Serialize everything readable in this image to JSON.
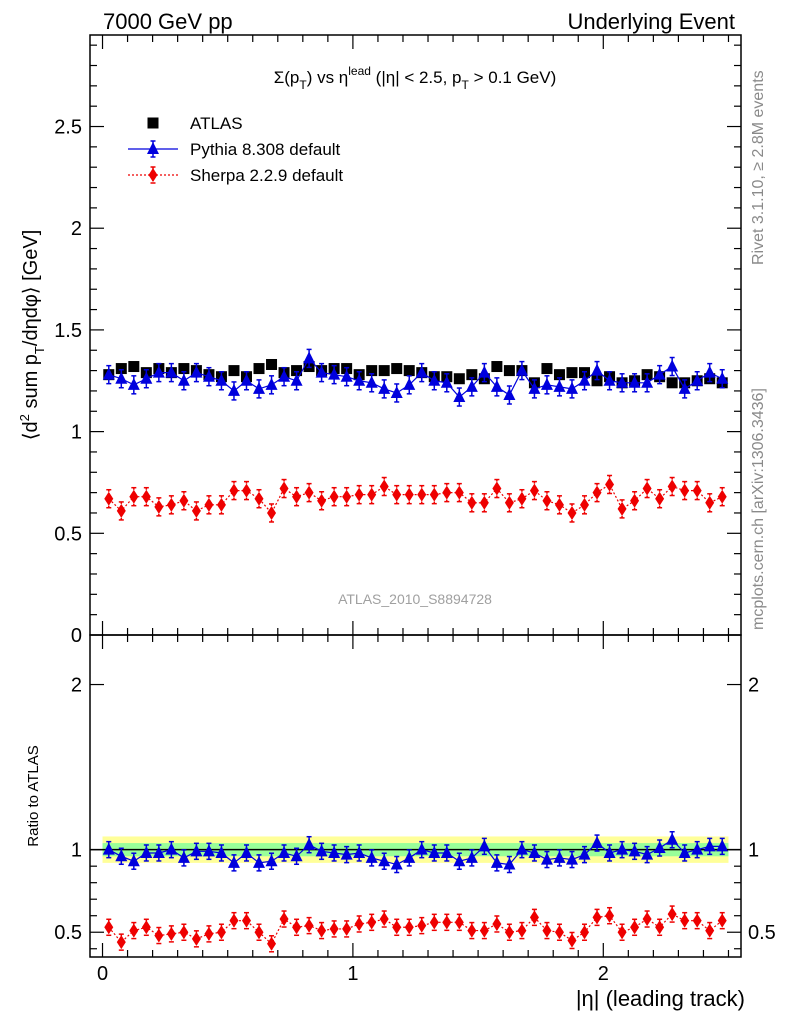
{
  "header": {
    "left": "7000 GeV pp",
    "right": "Underlying Event"
  },
  "side_labels": {
    "rivet": "Rivet 3.1.10, ≥ 2.8M events",
    "mcplots": "mcplots.cern.ch [arXiv:1306.3436]"
  },
  "watermark": "ATLAS_2010_S8894728",
  "chart_data": [
    {
      "type": "scatter",
      "title": "Σ(p_T) vs η^lead (|η| < 2.5, p_T > 0.1 GeV)",
      "xlabel": "",
      "ylabel": "⟨d² sum p_T/dηdφ⟩ [GeV]",
      "xlim": [
        -0.05,
        2.55
      ],
      "ylim": [
        0,
        2.95
      ],
      "yticks": [
        "0.5",
        "1",
        "1.5",
        "2",
        "2.5"
      ],
      "legend_placement": "top-left",
      "x": [
        0.025,
        0.075,
        0.125,
        0.175,
        0.225,
        0.275,
        0.325,
        0.375,
        0.425,
        0.475,
        0.525,
        0.575,
        0.625,
        0.675,
        0.725,
        0.775,
        0.825,
        0.875,
        0.925,
        0.975,
        1.025,
        1.075,
        1.125,
        1.175,
        1.225,
        1.275,
        1.325,
        1.375,
        1.425,
        1.475,
        1.525,
        1.575,
        1.625,
        1.675,
        1.725,
        1.775,
        1.825,
        1.875,
        1.925,
        1.975,
        2.025,
        2.075,
        2.125,
        2.175,
        2.225,
        2.275,
        2.325,
        2.375,
        2.425,
        2.475
      ],
      "series": [
        {
          "name": "ATLAS",
          "color": "#000000",
          "marker": "square",
          "values": [
            1.28,
            1.31,
            1.32,
            1.29,
            1.31,
            1.29,
            1.31,
            1.3,
            1.28,
            1.27,
            1.3,
            1.27,
            1.31,
            1.33,
            1.29,
            1.3,
            1.32,
            1.3,
            1.31,
            1.31,
            1.28,
            1.3,
            1.3,
            1.31,
            1.3,
            1.29,
            1.27,
            1.27,
            1.26,
            1.28,
            1.26,
            1.32,
            1.3,
            1.3,
            1.24,
            1.31,
            1.28,
            1.29,
            1.29,
            1.25,
            1.27,
            1.24,
            1.25,
            1.28,
            1.27,
            1.24,
            1.24,
            1.25,
            1.26,
            1.24
          ]
        },
        {
          "name": "Pythia 8.308 default",
          "color": "#0000dd",
          "marker": "triangle",
          "values": [
            1.28,
            1.26,
            1.23,
            1.26,
            1.29,
            1.29,
            1.25,
            1.29,
            1.27,
            1.25,
            1.2,
            1.25,
            1.21,
            1.23,
            1.27,
            1.25,
            1.36,
            1.29,
            1.28,
            1.27,
            1.25,
            1.24,
            1.21,
            1.19,
            1.23,
            1.29,
            1.25,
            1.24,
            1.17,
            1.22,
            1.29,
            1.22,
            1.18,
            1.3,
            1.21,
            1.23,
            1.22,
            1.21,
            1.25,
            1.3,
            1.25,
            1.24,
            1.24,
            1.24,
            1.28,
            1.32,
            1.21,
            1.25,
            1.29,
            1.26
          ]
        },
        {
          "name": "Sherpa 2.2.9 default",
          "color": "#ee0000",
          "marker": "diamond",
          "values": [
            0.67,
            0.61,
            0.68,
            0.68,
            0.63,
            0.64,
            0.66,
            0.61,
            0.64,
            0.64,
            0.71,
            0.71,
            0.67,
            0.6,
            0.72,
            0.68,
            0.7,
            0.66,
            0.68,
            0.68,
            0.69,
            0.69,
            0.73,
            0.69,
            0.69,
            0.69,
            0.69,
            0.7,
            0.7,
            0.65,
            0.65,
            0.72,
            0.65,
            0.67,
            0.71,
            0.66,
            0.64,
            0.6,
            0.64,
            0.7,
            0.74,
            0.62,
            0.66,
            0.72,
            0.67,
            0.73,
            0.71,
            0.71,
            0.65,
            0.68
          ]
        }
      ]
    },
    {
      "type": "scatter",
      "title": "",
      "xlabel": "|η| (leading track)",
      "ylabel": "Ratio to ATLAS",
      "xlim": [
        -0.05,
        2.55
      ],
      "ylim": [
        0.35,
        2.3
      ],
      "xticks": [
        "0",
        "1",
        "2"
      ],
      "yticks": [
        "0.5",
        "1",
        "2"
      ],
      "reference_line": 1,
      "uncertainty_bands": {
        "inner_color": "#99ff99",
        "outer_color": "#ffff99"
      },
      "series": [
        {
          "name": "Pythia 8.308 default",
          "color": "#0000dd",
          "marker": "triangle",
          "values": [
            1.0,
            0.96,
            0.93,
            0.98,
            0.98,
            1.0,
            0.95,
            0.99,
            0.99,
            0.98,
            0.92,
            0.98,
            0.92,
            0.93,
            0.98,
            0.96,
            1.03,
            0.99,
            0.98,
            0.97,
            0.98,
            0.95,
            0.93,
            0.91,
            0.95,
            1.0,
            0.98,
            0.98,
            0.93,
            0.95,
            1.02,
            0.92,
            0.91,
            1.0,
            0.98,
            0.94,
            0.95,
            0.94,
            0.97,
            1.04,
            0.98,
            1.0,
            0.99,
            0.97,
            1.01,
            1.06,
            0.98,
            1.0,
            1.02,
            1.02
          ]
        },
        {
          "name": "Sherpa 2.2.9 default",
          "color": "#ee0000",
          "marker": "diamond",
          "values": [
            0.53,
            0.44,
            0.51,
            0.53,
            0.48,
            0.49,
            0.5,
            0.46,
            0.49,
            0.5,
            0.57,
            0.57,
            0.5,
            0.43,
            0.58,
            0.53,
            0.54,
            0.51,
            0.52,
            0.52,
            0.55,
            0.56,
            0.58,
            0.53,
            0.53,
            0.54,
            0.56,
            0.56,
            0.56,
            0.51,
            0.51,
            0.55,
            0.5,
            0.51,
            0.59,
            0.51,
            0.5,
            0.45,
            0.5,
            0.59,
            0.6,
            0.5,
            0.53,
            0.58,
            0.53,
            0.61,
            0.57,
            0.57,
            0.51,
            0.57
          ]
        }
      ]
    }
  ]
}
